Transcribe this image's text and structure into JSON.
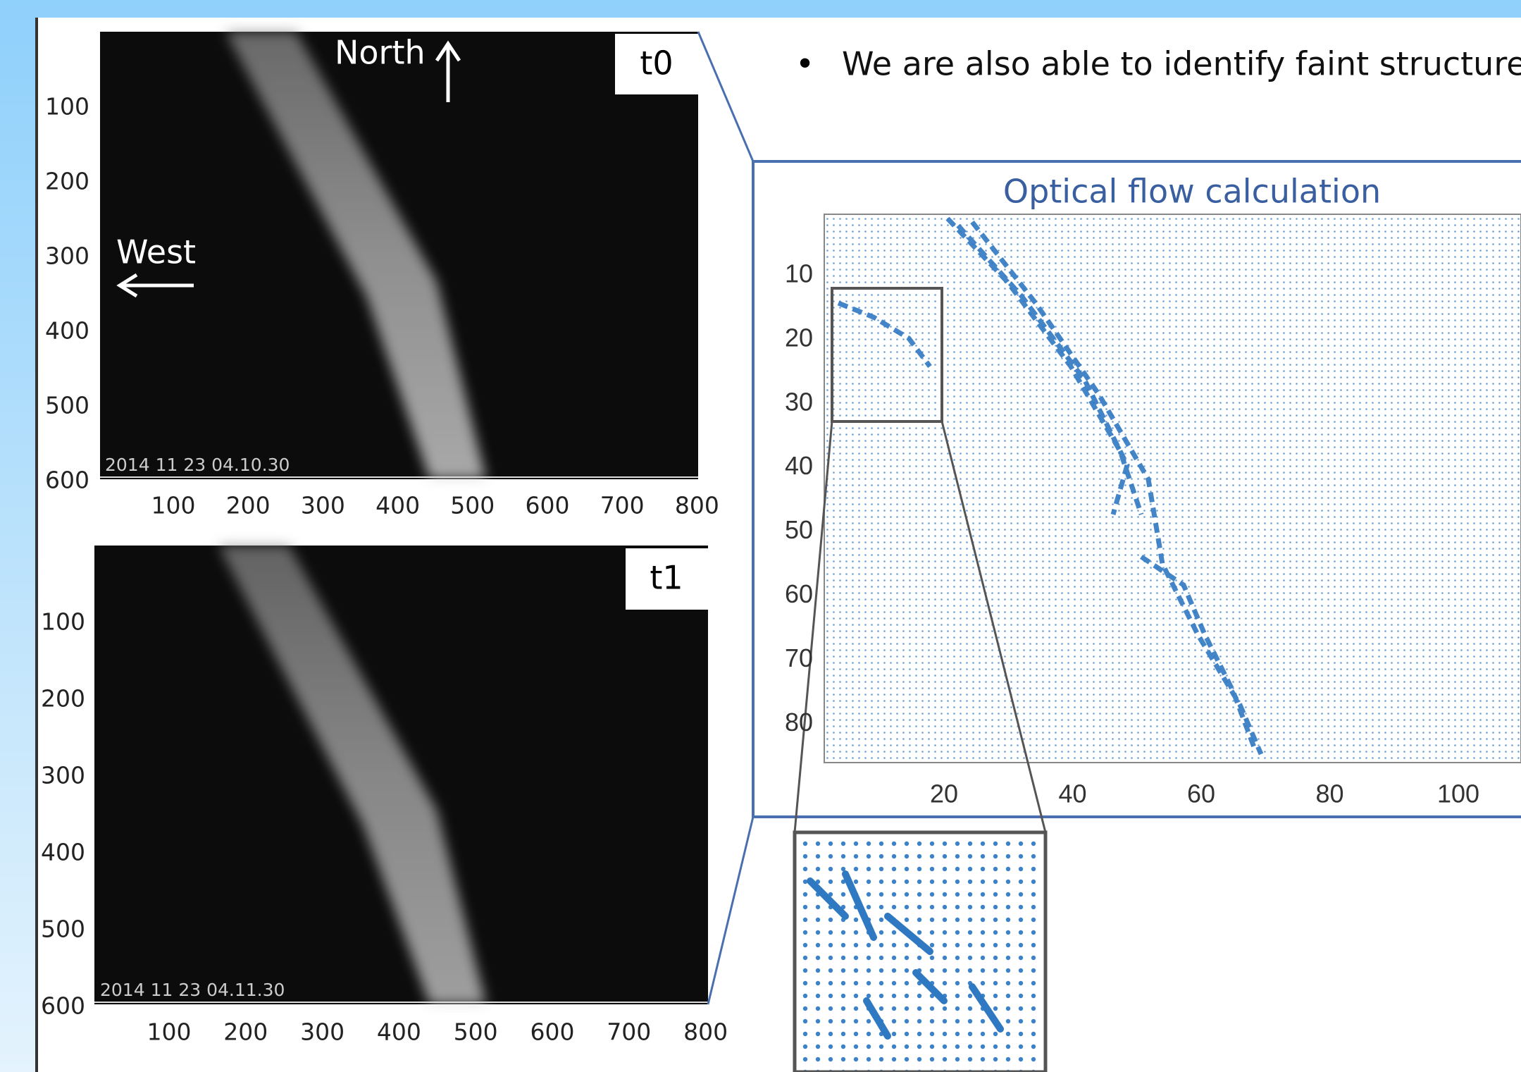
{
  "bullet": "We are also able to identify faint structures",
  "panels": [
    {
      "label": "t0",
      "timestamp": "2014 11 23 04.10.30",
      "north": "North",
      "west": "West"
    },
    {
      "label": "t1",
      "timestamp": "2014 11 23 04.11.30"
    }
  ],
  "image_axes": {
    "yticks": [
      100,
      200,
      300,
      400,
      500,
      600
    ],
    "xticks": [
      100,
      200,
      300,
      400,
      500,
      600,
      700,
      800
    ]
  },
  "flow": {
    "title": "Optical flow calculation",
    "yticks": [
      10,
      20,
      30,
      40,
      50,
      60,
      70,
      80
    ],
    "xticks": [
      20,
      40,
      60,
      80,
      100
    ]
  }
}
